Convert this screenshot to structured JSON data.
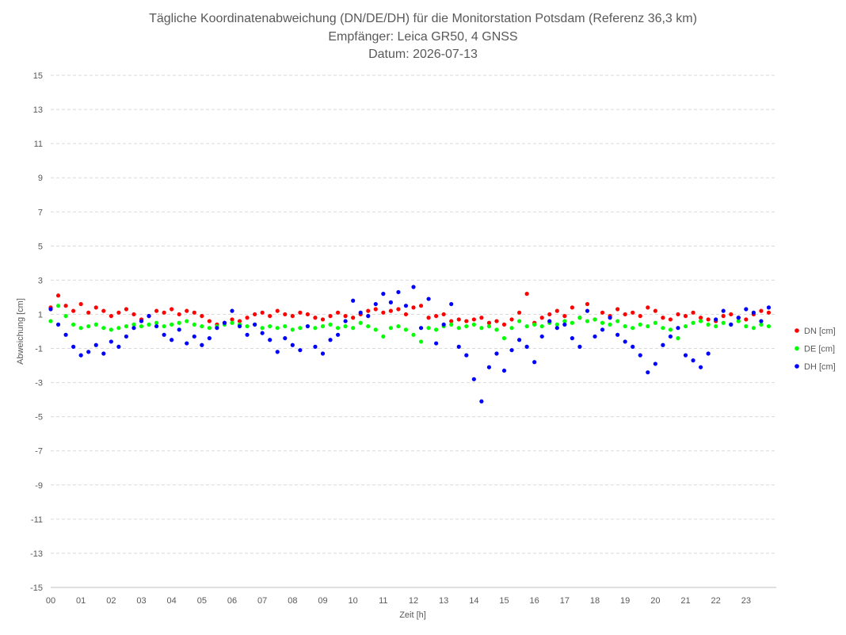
{
  "chart_data": {
    "type": "scatter",
    "title_lines": [
      "Tägliche Koordinatenabweichung (DN/DE/DH) für die Monitorstation Potsdam (Referenz 36,3 km)",
      "Empfänger: Leica GR50, 4 GNSS",
      "Datum: 2026-07-13"
    ],
    "xlabel": "Zeit [h]",
    "ylabel": "Abweichung [cm]",
    "xlim": [
      0,
      24
    ],
    "ylim": [
      -15,
      15
    ],
    "x_ticks": [
      "00",
      "01",
      "02",
      "03",
      "04",
      "05",
      "06",
      "07",
      "08",
      "09",
      "10",
      "11",
      "12",
      "13",
      "14",
      "15",
      "16",
      "17",
      "18",
      "19",
      "20",
      "21",
      "22",
      "23"
    ],
    "y_ticks": [
      15,
      13,
      11,
      9,
      7,
      5,
      3,
      1,
      -1,
      -3,
      -5,
      -7,
      -9,
      -11,
      -13,
      -15
    ],
    "grid": "horizontal dashed",
    "legend_position": "right",
    "series": [
      {
        "name": "DN [cm]",
        "color": "#ff0000",
        "x": [
          0.0,
          0.25,
          0.5,
          0.75,
          1.0,
          1.25,
          1.5,
          1.75,
          2.0,
          2.25,
          2.5,
          2.75,
          3.0,
          3.25,
          3.5,
          3.75,
          4.0,
          4.25,
          4.5,
          4.75,
          5.0,
          5.25,
          5.5,
          5.75,
          6.0,
          6.25,
          6.5,
          6.75,
          7.0,
          7.25,
          7.5,
          7.75,
          8.0,
          8.25,
          8.5,
          8.75,
          9.0,
          9.25,
          9.5,
          9.75,
          10.0,
          10.25,
          10.5,
          10.75,
          11.0,
          11.25,
          11.5,
          11.75,
          12.0,
          12.25,
          12.5,
          12.75,
          13.0,
          13.25,
          13.5,
          13.75,
          14.0,
          14.25,
          14.5,
          14.75,
          15.0,
          15.25,
          15.5,
          15.75,
          16.0,
          16.25,
          16.5,
          16.75,
          17.0,
          17.25,
          17.5,
          17.75,
          18.0,
          18.25,
          18.5,
          18.75,
          19.0,
          19.25,
          19.5,
          19.75,
          20.0,
          20.25,
          20.5,
          20.75,
          21.0,
          21.25,
          21.5,
          21.75,
          22.0,
          22.25,
          22.5,
          22.75,
          23.0,
          23.25,
          23.5,
          23.75
        ],
        "values": [
          1.4,
          2.1,
          1.5,
          1.2,
          1.6,
          1.1,
          1.4,
          1.2,
          0.9,
          1.1,
          1.3,
          1.0,
          0.7,
          0.9,
          1.2,
          1.1,
          1.3,
          1.0,
          1.2,
          1.1,
          0.9,
          0.6,
          0.4,
          0.5,
          0.7,
          0.6,
          0.8,
          1.0,
          1.1,
          0.9,
          1.2,
          1.0,
          0.9,
          1.1,
          1.0,
          0.8,
          0.7,
          0.9,
          1.1,
          0.9,
          0.8,
          1.0,
          1.2,
          1.3,
          1.1,
          1.2,
          1.3,
          1.0,
          1.4,
          1.5,
          0.8,
          0.9,
          1.0,
          0.6,
          0.7,
          0.6,
          0.7,
          0.8,
          0.5,
          0.6,
          0.4,
          0.7,
          1.1,
          2.2,
          0.5,
          0.8,
          1.0,
          1.2,
          0.9,
          1.4,
          0.8,
          1.6,
          0.7,
          1.1,
          0.9,
          1.3,
          1.0,
          1.1,
          0.9,
          1.4,
          1.2,
          0.8,
          0.7,
          1.0,
          0.9,
          1.1,
          0.8,
          0.7,
          0.6,
          0.9,
          1.0,
          0.8,
          0.7,
          1.0,
          1.2,
          1.1
        ]
      },
      {
        "name": "DE [cm]",
        "color": "#00ff00",
        "x": [
          0.0,
          0.25,
          0.5,
          0.75,
          1.0,
          1.25,
          1.5,
          1.75,
          2.0,
          2.25,
          2.5,
          2.75,
          3.0,
          3.25,
          3.5,
          3.75,
          4.0,
          4.25,
          4.5,
          4.75,
          5.0,
          5.25,
          5.5,
          5.75,
          6.0,
          6.25,
          6.5,
          6.75,
          7.0,
          7.25,
          7.5,
          7.75,
          8.0,
          8.25,
          8.5,
          8.75,
          9.0,
          9.25,
          9.5,
          9.75,
          10.0,
          10.25,
          10.5,
          10.75,
          11.0,
          11.25,
          11.5,
          11.75,
          12.0,
          12.25,
          12.5,
          12.75,
          13.0,
          13.25,
          13.5,
          13.75,
          14.0,
          14.25,
          14.5,
          14.75,
          15.0,
          15.25,
          15.5,
          15.75,
          16.0,
          16.25,
          16.5,
          16.75,
          17.0,
          17.25,
          17.5,
          17.75,
          18.0,
          18.25,
          18.5,
          18.75,
          19.0,
          19.25,
          19.5,
          19.75,
          20.0,
          20.25,
          20.5,
          20.75,
          21.0,
          21.25,
          21.5,
          21.75,
          22.0,
          22.25,
          22.5,
          22.75,
          23.0,
          23.25,
          23.5,
          23.75
        ],
        "values": [
          0.6,
          1.5,
          0.9,
          0.4,
          0.2,
          0.3,
          0.4,
          0.2,
          0.1,
          0.2,
          0.3,
          0.4,
          0.3,
          0.4,
          0.5,
          0.3,
          0.4,
          0.5,
          0.6,
          0.4,
          0.3,
          0.2,
          0.3,
          0.4,
          0.5,
          0.4,
          0.3,
          0.4,
          0.2,
          0.3,
          0.2,
          0.3,
          0.1,
          0.2,
          0.3,
          0.2,
          0.3,
          0.4,
          0.2,
          0.3,
          0.2,
          0.5,
          0.3,
          0.1,
          -0.3,
          0.2,
          0.3,
          0.1,
          -0.2,
          -0.6,
          0.2,
          0.1,
          0.3,
          0.4,
          0.2,
          0.3,
          0.4,
          0.2,
          0.3,
          0.1,
          -0.4,
          0.2,
          0.6,
          0.3,
          0.4,
          0.3,
          0.5,
          0.4,
          0.6,
          0.5,
          0.8,
          0.6,
          0.7,
          0.5,
          0.4,
          0.6,
          0.3,
          0.2,
          0.4,
          0.3,
          0.5,
          0.2,
          0.1,
          -0.4,
          0.3,
          0.5,
          0.6,
          0.4,
          0.3,
          0.5,
          0.4,
          0.6,
          0.3,
          0.2,
          0.4,
          0.3
        ]
      },
      {
        "name": "DH [cm]",
        "color": "#0000ff",
        "x": [
          0.0,
          0.25,
          0.5,
          0.75,
          1.0,
          1.25,
          1.5,
          1.75,
          2.0,
          2.25,
          2.5,
          2.75,
          3.0,
          3.25,
          3.5,
          3.75,
          4.0,
          4.25,
          4.5,
          4.75,
          5.0,
          5.25,
          5.5,
          5.75,
          6.0,
          6.25,
          6.5,
          6.75,
          7.0,
          7.25,
          7.5,
          7.75,
          8.0,
          8.25,
          8.5,
          8.75,
          9.0,
          9.25,
          9.5,
          9.75,
          10.0,
          10.25,
          10.5,
          10.75,
          11.0,
          11.25,
          11.5,
          11.75,
          12.0,
          12.25,
          12.5,
          12.75,
          13.0,
          13.25,
          13.5,
          13.75,
          14.0,
          14.25,
          14.5,
          14.75,
          15.0,
          15.25,
          15.5,
          15.75,
          16.0,
          16.25,
          16.5,
          16.75,
          17.0,
          17.25,
          17.5,
          17.75,
          18.0,
          18.25,
          18.5,
          18.75,
          19.0,
          19.25,
          19.5,
          19.75,
          20.0,
          20.25,
          20.5,
          20.75,
          21.0,
          21.25,
          21.5,
          21.75,
          22.0,
          22.25,
          22.5,
          22.75,
          23.0,
          23.25,
          23.5,
          23.75
        ],
        "values": [
          1.3,
          0.4,
          -0.2,
          -0.9,
          -1.4,
          -1.2,
          -0.8,
          -1.3,
          -0.6,
          -0.9,
          -0.3,
          0.2,
          0.6,
          0.9,
          0.3,
          -0.2,
          -0.5,
          0.1,
          -0.7,
          -0.3,
          -0.8,
          -0.4,
          0.2,
          0.5,
          1.2,
          0.3,
          -0.2,
          0.4,
          -0.1,
          -0.5,
          -1.2,
          -0.4,
          -0.8,
          -1.1,
          0.3,
          -0.9,
          -1.3,
          -0.5,
          -0.2,
          0.6,
          1.8,
          1.1,
          0.9,
          1.6,
          2.2,
          1.7,
          2.3,
          1.5,
          2.6,
          0.2,
          1.9,
          -0.7,
          0.4,
          1.6,
          -0.9,
          -1.4,
          -2.8,
          -4.1,
          -2.1,
          -1.3,
          -2.3,
          -1.1,
          -0.5,
          -0.9,
          -1.8,
          -0.3,
          0.6,
          0.2,
          0.4,
          -0.4,
          -0.9,
          1.2,
          -0.3,
          0.1,
          0.8,
          -0.2,
          -0.6,
          -0.9,
          -1.4,
          -2.4,
          -1.9,
          -0.8,
          -0.3,
          0.2,
          -1.4,
          -1.7,
          -2.1,
          -1.3,
          0.7,
          1.2,
          0.4,
          0.8,
          1.3,
          1.1,
          0.6,
          1.4
        ]
      }
    ]
  }
}
